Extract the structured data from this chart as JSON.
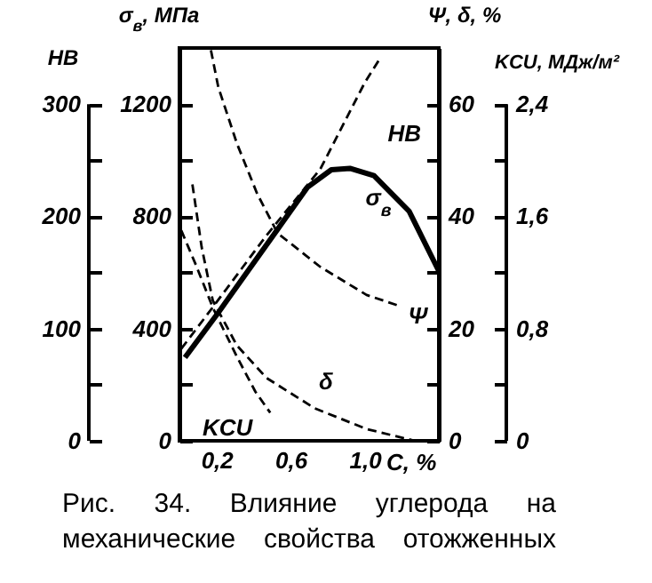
{
  "chart_data": [
    {
      "type": "line",
      "xlabel": "C, %",
      "ylabel": "σ$_{в}$, МПа",
      "y2label": "Ψ, δ, %",
      "y3label": "HB",
      "xlim": [
        0,
        1.4
      ],
      "xticks": [
        {
          "value": 0.2,
          "label": "0,2"
        },
        {
          "value": 0.6,
          "label": "0,6"
        },
        {
          "value": 1.0,
          "label": "1,0"
        }
      ],
      "ylim": [
        0,
        1400
      ],
      "yticks": [
        0,
        {
          "value": 200,
          "label": null
        },
        400,
        {
          "value": 600,
          "label": null
        },
        800,
        {
          "value": 1000,
          "label": null
        },
        1200
      ],
      "y2lim": [
        0,
        70
      ],
      "y2ticks": [
        0,
        {
          "value": 10,
          "label": null
        },
        20,
        {
          "value": 30,
          "label": null
        },
        40,
        {
          "value": 50,
          "label": null
        },
        60
      ],
      "y3lim": [
        0,
        350
      ],
      "y3ticks": [
        0,
        {
          "value": 50,
          "label": null
        },
        100,
        {
          "value": 150,
          "label": null
        },
        200,
        {
          "value": 250,
          "label": null
        },
        300
      ],
      "grid": false,
      "series": [
        {
          "name": "σ$_{в}$",
          "color": "#000000",
          "line_style": "solid",
          "axis": "y",
          "x": [
            0.03,
            0.21,
            0.53,
            0.69,
            0.82,
            0.92,
            1.05,
            1.24,
            1.4
          ],
          "values": [
            297,
            457,
            754,
            903,
            966,
            971,
            945,
            818,
            605
          ]
        },
        {
          "name": "HB",
          "color": "#000000",
          "line_style": "dashed",
          "axis": "y3",
          "x": [
            0.01,
            0.18,
            0.47,
            0.76,
            1.0,
            1.08
          ],
          "values": [
            82,
            119,
            183,
            242,
            319,
            340
          ]
        },
        {
          "name": "Ψ",
          "color": "#000000",
          "line_style": "dashed",
          "axis": "y2",
          "x": [
            0.17,
            0.21,
            0.31,
            0.42,
            0.53,
            0.76,
            1.01,
            1.19
          ],
          "values": [
            69.6,
            63,
            53,
            44,
            37,
            31,
            26,
            24
          ]
        },
        {
          "name": "δ",
          "color": "#000000",
          "line_style": "dashed",
          "axis": "y2",
          "x": [
            0.07,
            0.12,
            0.18,
            0.31,
            0.47,
            0.73,
            1.01,
            1.27
          ],
          "values": [
            45.7,
            34.5,
            25,
            17,
            11.2,
            5.8,
            2.1,
            0
          ]
        }
      ],
      "annotations": [
        "Рис. 34. Влияние углерода на механические свойства отожженных"
      ]
    },
    {
      "type": "line",
      "ylabel": "KCU, МДж/м²",
      "tick_labels": "y",
      "xlim": [
        0,
        1.4
      ],
      "ylim": [
        0,
        2.8
      ],
      "yticks": [
        0,
        {
          "value": 0.4,
          "label": null
        },
        {
          "value": 0.8,
          "label": "0,8"
        },
        {
          "value": 1.2,
          "label": null
        },
        {
          "value": 1.6,
          "label": "1,6"
        },
        {
          "value": 2.0,
          "label": null
        },
        {
          "value": 2.4,
          "label": "2,4"
        }
      ],
      "series": [
        {
          "name": "KCU",
          "color": "#000000",
          "line_style": "dashed",
          "x": [
            0.01,
            0.09,
            0.18,
            0.31,
            0.41,
            0.49
          ],
          "values": [
            1.5,
            1.25,
            0.95,
            0.6,
            0.35,
            0.2
          ]
        }
      ]
    }
  ]
}
